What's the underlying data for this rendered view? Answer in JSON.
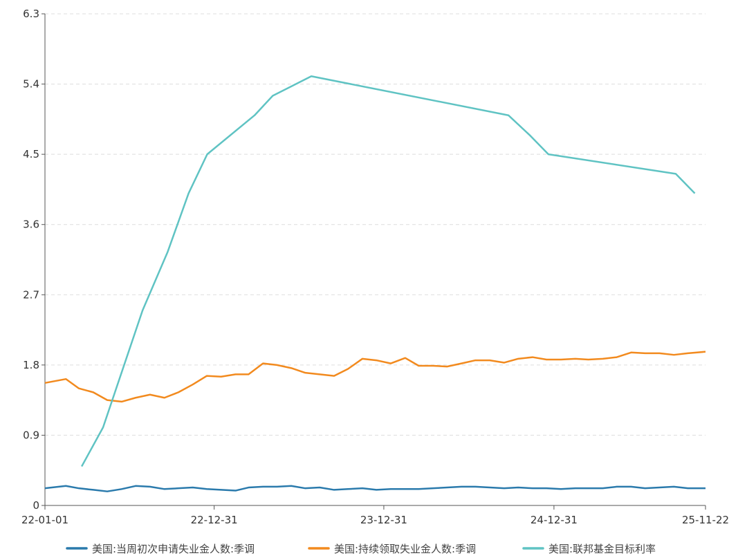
{
  "chart_data": {
    "type": "line",
    "title": "",
    "xlabel": "",
    "ylabel": "",
    "ylim": [
      0,
      6.3
    ],
    "yticks": [
      "0",
      "0.9",
      "1.8",
      "2.7",
      "3.6",
      "4.5",
      "5.4",
      "6.3"
    ],
    "xlim": [
      "2022-01-01",
      "2025-11-22"
    ],
    "xticks": [
      {
        "date": "2022-01-01",
        "label": "22-01-01"
      },
      {
        "date": "2022-12-31",
        "label": "22-12-31"
      },
      {
        "date": "2023-12-31",
        "label": "23-12-31"
      },
      {
        "date": "2024-12-31",
        "label": "24-12-31"
      },
      {
        "date": "2025-11-22",
        "label": "25-11-22"
      }
    ],
    "grid": "horizontal dashed",
    "legend_position": "bottom",
    "series": [
      {
        "name": "美国:当周初次申请失业金人数:季调",
        "color": "#2a7aac",
        "months": [
          "2022-01",
          "2022-02",
          "2022-03",
          "2022-04",
          "2022-05",
          "2022-06",
          "2022-07",
          "2022-08",
          "2022-09",
          "2022-10",
          "2022-11",
          "2022-12",
          "2023-01",
          "2023-02",
          "2023-03",
          "2023-04",
          "2023-05",
          "2023-06",
          "2023-07",
          "2023-08",
          "2023-09",
          "2023-10",
          "2023-11",
          "2023-12",
          "2024-01",
          "2024-02",
          "2024-03",
          "2024-04",
          "2024-05",
          "2024-06",
          "2024-07",
          "2024-08",
          "2024-09",
          "2024-10",
          "2024-11",
          "2024-12",
          "2025-01",
          "2025-02",
          "2025-03",
          "2025-04",
          "2025-05",
          "2025-06",
          "2025-07",
          "2025-08",
          "2025-09",
          "2025-10",
          "2025-11"
        ],
        "values": [
          0.22,
          0.25,
          0.22,
          0.2,
          0.18,
          0.21,
          0.25,
          0.24,
          0.21,
          0.22,
          0.23,
          0.21,
          0.2,
          0.19,
          0.23,
          0.24,
          0.24,
          0.25,
          0.22,
          0.23,
          0.2,
          0.21,
          0.22,
          0.2,
          0.21,
          0.21,
          0.21,
          0.22,
          0.23,
          0.24,
          0.24,
          0.23,
          0.22,
          0.23,
          0.22,
          0.22,
          0.21,
          0.22,
          0.22,
          0.22,
          0.24,
          0.24,
          0.22,
          0.23,
          0.24,
          0.22,
          0.22
        ]
      },
      {
        "name": "美国:持续领取失业金人数:季调",
        "color": "#f28a1e",
        "months": [
          "2022-01",
          "2022-02",
          "2022-03",
          "2022-04",
          "2022-05",
          "2022-06",
          "2022-07",
          "2022-08",
          "2022-09",
          "2022-10",
          "2022-11",
          "2022-12",
          "2023-01",
          "2023-02",
          "2023-03",
          "2023-04",
          "2023-05",
          "2023-06",
          "2023-07",
          "2023-08",
          "2023-09",
          "2023-10",
          "2023-11",
          "2023-12",
          "2024-01",
          "2024-02",
          "2024-03",
          "2024-04",
          "2024-05",
          "2024-06",
          "2024-07",
          "2024-08",
          "2024-09",
          "2024-10",
          "2024-11",
          "2024-12",
          "2025-01",
          "2025-02",
          "2025-03",
          "2025-04",
          "2025-05",
          "2025-06",
          "2025-07",
          "2025-08",
          "2025-09",
          "2025-10",
          "2025-11"
        ],
        "values": [
          1.57,
          1.62,
          1.5,
          1.45,
          1.35,
          1.33,
          1.38,
          1.42,
          1.38,
          1.45,
          1.55,
          1.66,
          1.65,
          1.68,
          1.68,
          1.82,
          1.8,
          1.76,
          1.7,
          1.68,
          1.66,
          1.75,
          1.88,
          1.86,
          1.82,
          1.89,
          1.79,
          1.79,
          1.78,
          1.82,
          1.86,
          1.86,
          1.83,
          1.88,
          1.9,
          1.87,
          1.87,
          1.88,
          1.87,
          1.88,
          1.9,
          1.96,
          1.95,
          1.95,
          1.93,
          1.95,
          1.97
        ]
      },
      {
        "name": "美国:联邦基金目标利率",
        "color": "#5fc3c3",
        "points": [
          [
            "2022-03-21",
            0.5
          ],
          [
            "2022-05-06",
            1.0
          ],
          [
            "2022-07-30",
            2.5
          ],
          [
            "2022-09-22",
            3.25
          ],
          [
            "2022-11-06",
            4.0
          ],
          [
            "2022-12-16",
            4.5
          ],
          [
            "2023-03-28",
            5.0
          ],
          [
            "2023-05-06",
            5.25
          ],
          [
            "2023-07-28",
            5.5
          ],
          [
            "2024-09-24",
            5.0
          ],
          [
            "2024-11-08",
            4.75
          ],
          [
            "2024-12-19",
            4.5
          ],
          [
            "2025-09-19",
            4.25
          ],
          [
            "2025-10-30",
            4.0
          ]
        ]
      }
    ]
  }
}
